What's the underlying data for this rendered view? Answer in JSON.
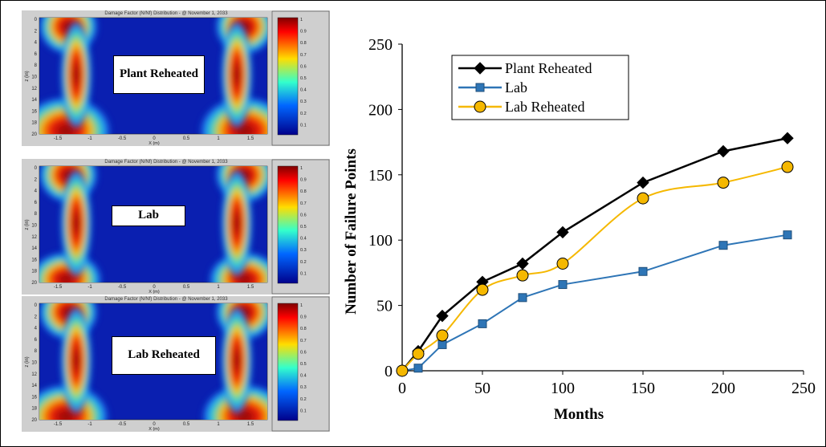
{
  "panels": [
    {
      "title": "Damage Factor (N/Nf) Distribution - @ November 1, 2033",
      "label": "Plant Reheated",
      "level": 1.0
    },
    {
      "title": "Damage Factor (N/Nf) Distribution - @ November 1, 2033",
      "label": "Lab",
      "level": 0.8
    },
    {
      "title": "Damage Factor (N/Nf) Distribution - @ November 1, 2033",
      "label": "Lab Reheated",
      "level": 0.95
    }
  ],
  "heatmap_axes": {
    "ylabel": "z (in)",
    "xlabel": "X (m)",
    "yticks": [
      "0",
      "2",
      "4",
      "6",
      "8",
      "10",
      "12",
      "14",
      "16",
      "18",
      "20"
    ],
    "xticks": [
      "-1.5",
      "-1",
      "-0.5",
      "0",
      "0.5",
      "1",
      "1.5"
    ],
    "colorbar_ticks": [
      "1",
      "0.9",
      "0.8",
      "0.7",
      "0.6",
      "0.5",
      "0.4",
      "0.3",
      "0.2",
      "0.1"
    ]
  },
  "chart_data": {
    "type": "line",
    "xlabel": "Months",
    "ylabel": "Number of Failure Points",
    "xlim": [
      0,
      250
    ],
    "ylim": [
      0,
      250
    ],
    "xticks": [
      0,
      50,
      100,
      150,
      200,
      250
    ],
    "yticks": [
      0,
      50,
      100,
      150,
      200,
      250
    ],
    "grid": false,
    "legend_position": "top-left",
    "series": [
      {
        "name": "Plant Reheated",
        "color": "#000000",
        "marker": "diamond",
        "smooth": false,
        "x": [
          0,
          10,
          25,
          50,
          75,
          100,
          150,
          200,
          240
        ],
        "y": [
          0,
          15,
          42,
          68,
          82,
          106,
          144,
          168,
          178
        ]
      },
      {
        "name": "Lab",
        "color": "#2e75b6",
        "marker": "square",
        "smooth": false,
        "x": [
          0,
          10,
          25,
          50,
          75,
          100,
          150,
          200,
          240
        ],
        "y": [
          0,
          2,
          20,
          36,
          56,
          66,
          76,
          96,
          104
        ]
      },
      {
        "name": "Lab Reheated",
        "color": "#f5b800",
        "marker": "circle",
        "smooth": true,
        "x": [
          0,
          10,
          25,
          50,
          75,
          100,
          150,
          200,
          240
        ],
        "y": [
          0,
          13,
          27,
          62,
          73,
          82,
          132,
          144,
          156
        ]
      }
    ]
  }
}
